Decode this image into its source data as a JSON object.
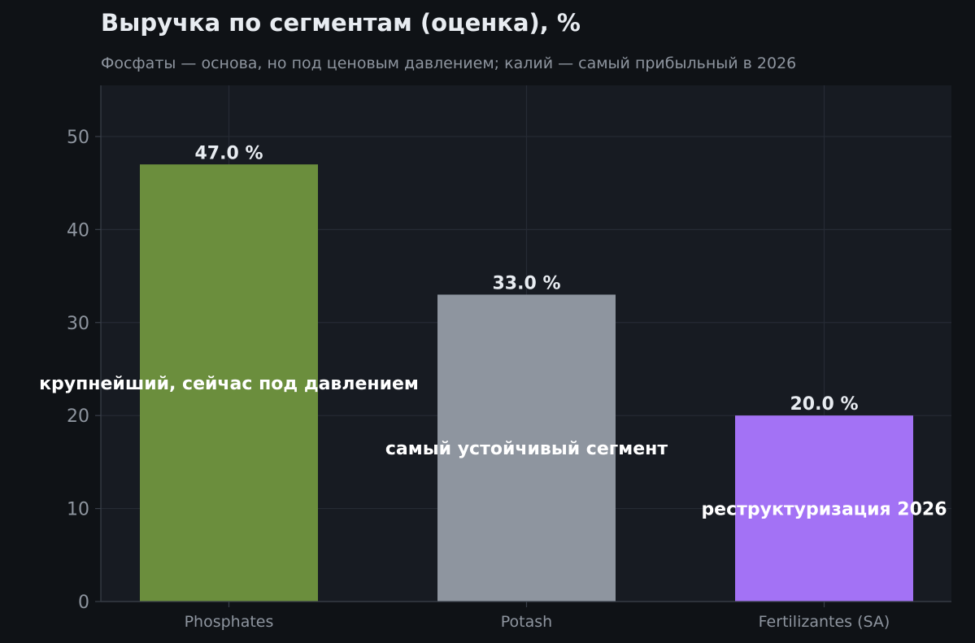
{
  "chart_data": {
    "type": "bar",
    "title": "Выручка по сегментам (оценка), %",
    "subtitle": "Фосфаты — основа, но под ценовым давлением; калий — самый прибыльный в 2026",
    "categories": [
      "Phosphates",
      "Potash",
      "Fertilizantes (SA)"
    ],
    "values": [
      47.0,
      33.0,
      20.0
    ],
    "value_labels": [
      "47.0 %",
      "33.0 %",
      "20.0 %"
    ],
    "bar_colors": [
      "#6b8e3d",
      "#8e959f",
      "#a372f5"
    ],
    "annotations": [
      {
        "text": "крупнейший, сейчас под давлением",
        "category": "Phosphates",
        "y": 23.5
      },
      {
        "text": "самый устойчивый сегмент",
        "category": "Potash",
        "y": 16.5
      },
      {
        "text": "реструктуризация 2026",
        "category": "Fertilizantes (SA)",
        "y": 10
      }
    ],
    "xlabel": "",
    "ylabel": "",
    "ylim": [
      0,
      55.5
    ],
    "yticks": [
      0,
      10,
      20,
      30,
      40,
      50
    ],
    "grid": true,
    "colors": {
      "background": "#0f1216",
      "plot_background": "#171b22",
      "grid": "#262b34",
      "title": "#e8ecf1",
      "subtitle": "#8e959f",
      "tick_label": "#8e959f",
      "value_label": "#e8ecf1",
      "annotation": "#ffffff",
      "axis": "#3a404a"
    }
  }
}
